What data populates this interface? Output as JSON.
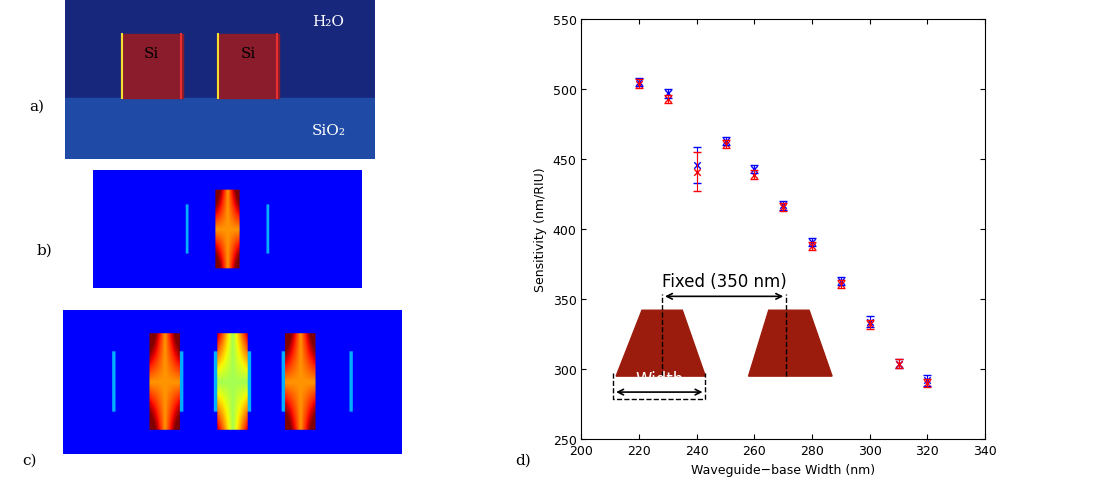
{
  "panels": {
    "a": {
      "label": "a)",
      "upper_medium": "H₂O",
      "lower_medium": "SiO₂",
      "waveguides": [
        "Si",
        "Si"
      ]
    },
    "b": {
      "label": "b)"
    },
    "c": {
      "label": "c)"
    }
  },
  "chart_data": {
    "type": "scatter",
    "label": "d)",
    "x_label": "Waveguide−base Width (nm)",
    "y_label": "Sensitivity (nm/RIU)",
    "x": [
      220,
      230,
      240,
      250,
      260,
      270,
      280,
      290,
      300,
      310,
      320
    ],
    "series": [
      {
        "color": "#0000ff",
        "marker": "x",
        "values": [
          505,
          497,
          446,
          463,
          443,
          417,
          391,
          363,
          334,
          304,
          292
        ],
        "errors": [
          3,
          3,
          13,
          3,
          3,
          3,
          3,
          3,
          4,
          3,
          4
        ]
      },
      {
        "color": "#ff0000",
        "marker": "x",
        "values": [
          504,
          493,
          441,
          461,
          439,
          416,
          388,
          361,
          332,
          304,
          290
        ],
        "errors": [
          3,
          3,
          14,
          3,
          3,
          3,
          3,
          3,
          3,
          3,
          3
        ]
      }
    ],
    "xlim": [
      200,
      340
    ],
    "xticks": [
      200,
      220,
      240,
      260,
      280,
      300,
      320,
      340
    ],
    "ylim": [
      250,
      550
    ],
    "yticks": [
      250,
      300,
      350,
      400,
      450,
      500,
      550
    ],
    "grid": false,
    "annotations": [
      "Fixed (350 nm)",
      "Width"
    ]
  }
}
